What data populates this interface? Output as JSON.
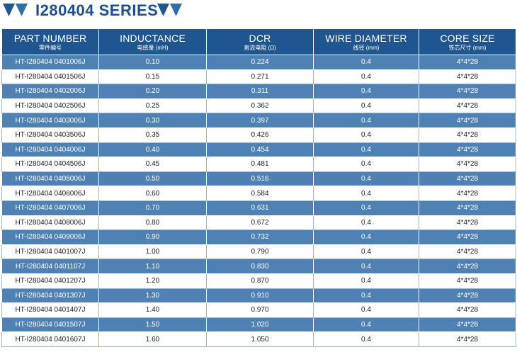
{
  "title": "I280404 SERIES",
  "colors": {
    "header_bg": "#1f568f",
    "band_row_bg": "#4f81b4",
    "title_color": "#1c4f8c"
  },
  "icons": {
    "left": "down-triangle-pair-icon",
    "right": "down-triangle-pair-icon"
  },
  "headers": [
    {
      "main": "PART NUMBER",
      "sub": "零件编号"
    },
    {
      "main": "INDUCTANCE",
      "sub": "电感量 (mH)"
    },
    {
      "main": "DCR",
      "sub": "直流电阻 (Ω)"
    },
    {
      "main": "WIRE DIAMETER",
      "sub": "线径 (mm)"
    },
    {
      "main": "CORE SIZE",
      "sub": "铁芯尺寸 (mm)"
    }
  ],
  "rows": [
    [
      "HT-I280404 0401006J",
      "0.10",
      "0.224",
      "0.4",
      "4*4*28"
    ],
    [
      "HT-I280404 0401506J",
      "0.15",
      "0.271",
      "0.4",
      "4*4*28"
    ],
    [
      "HT-I280404 0402006J",
      "0.20",
      "0.311",
      "0.4",
      "4*4*28"
    ],
    [
      "HT-I280404 0402506J",
      "0.25",
      "0.362",
      "0.4",
      "4*4*28"
    ],
    [
      "HT-I280404 0403006J",
      "0.30",
      "0.397",
      "0.4",
      "4*4*28"
    ],
    [
      "HT-I280404 0403506J",
      "0.35",
      "0.426",
      "0.4",
      "4*4*28"
    ],
    [
      "HT-I280404 0404006J",
      "0.40",
      "0.454",
      "0.4",
      "4*4*28"
    ],
    [
      "HT-I280404 0404506J",
      "0.45",
      "0.481",
      "0.4",
      "4*4*28"
    ],
    [
      "HT-I280404 0405006J",
      "0.50",
      "0.516",
      "0.4",
      "4*4*28"
    ],
    [
      "HT-I280404 0406006J",
      "0.60",
      "0.584",
      "0.4",
      "4*4*28"
    ],
    [
      "HT-I280404 0407006J",
      "0.70",
      "0.631",
      "0.4",
      "4*4*28"
    ],
    [
      "HT-I280404 0408006J",
      "0.80",
      "0.672",
      "0.4",
      "4*4*28"
    ],
    [
      "HT-I280404 0409006J",
      "0.90",
      "0.732",
      "0.4",
      "4*4*28"
    ],
    [
      "HT-I280404 0401007J",
      "1.00",
      "0.790",
      "0.4",
      "4*4*28"
    ],
    [
      "HT-I280404 0401107J",
      "1.10",
      "0.830",
      "0.4",
      "4*4*28"
    ],
    [
      "HT-I280404 0401207J",
      "1.20",
      "0.870",
      "0.4",
      "4*4*28"
    ],
    [
      "HT-I280404 0401307J",
      "1.30",
      "0.910",
      "0.4",
      "4*4*28"
    ],
    [
      "HT-I280404 0401407J",
      "1.40",
      "0.970",
      "0.4",
      "4*4*28"
    ],
    [
      "HT-I280404 0401507J",
      "1.50",
      "1.020",
      "0.4",
      "4*4*28"
    ],
    [
      "HT-I280404 0401607J",
      "1.60",
      "1.050",
      "0.4",
      "4*4*28"
    ]
  ]
}
